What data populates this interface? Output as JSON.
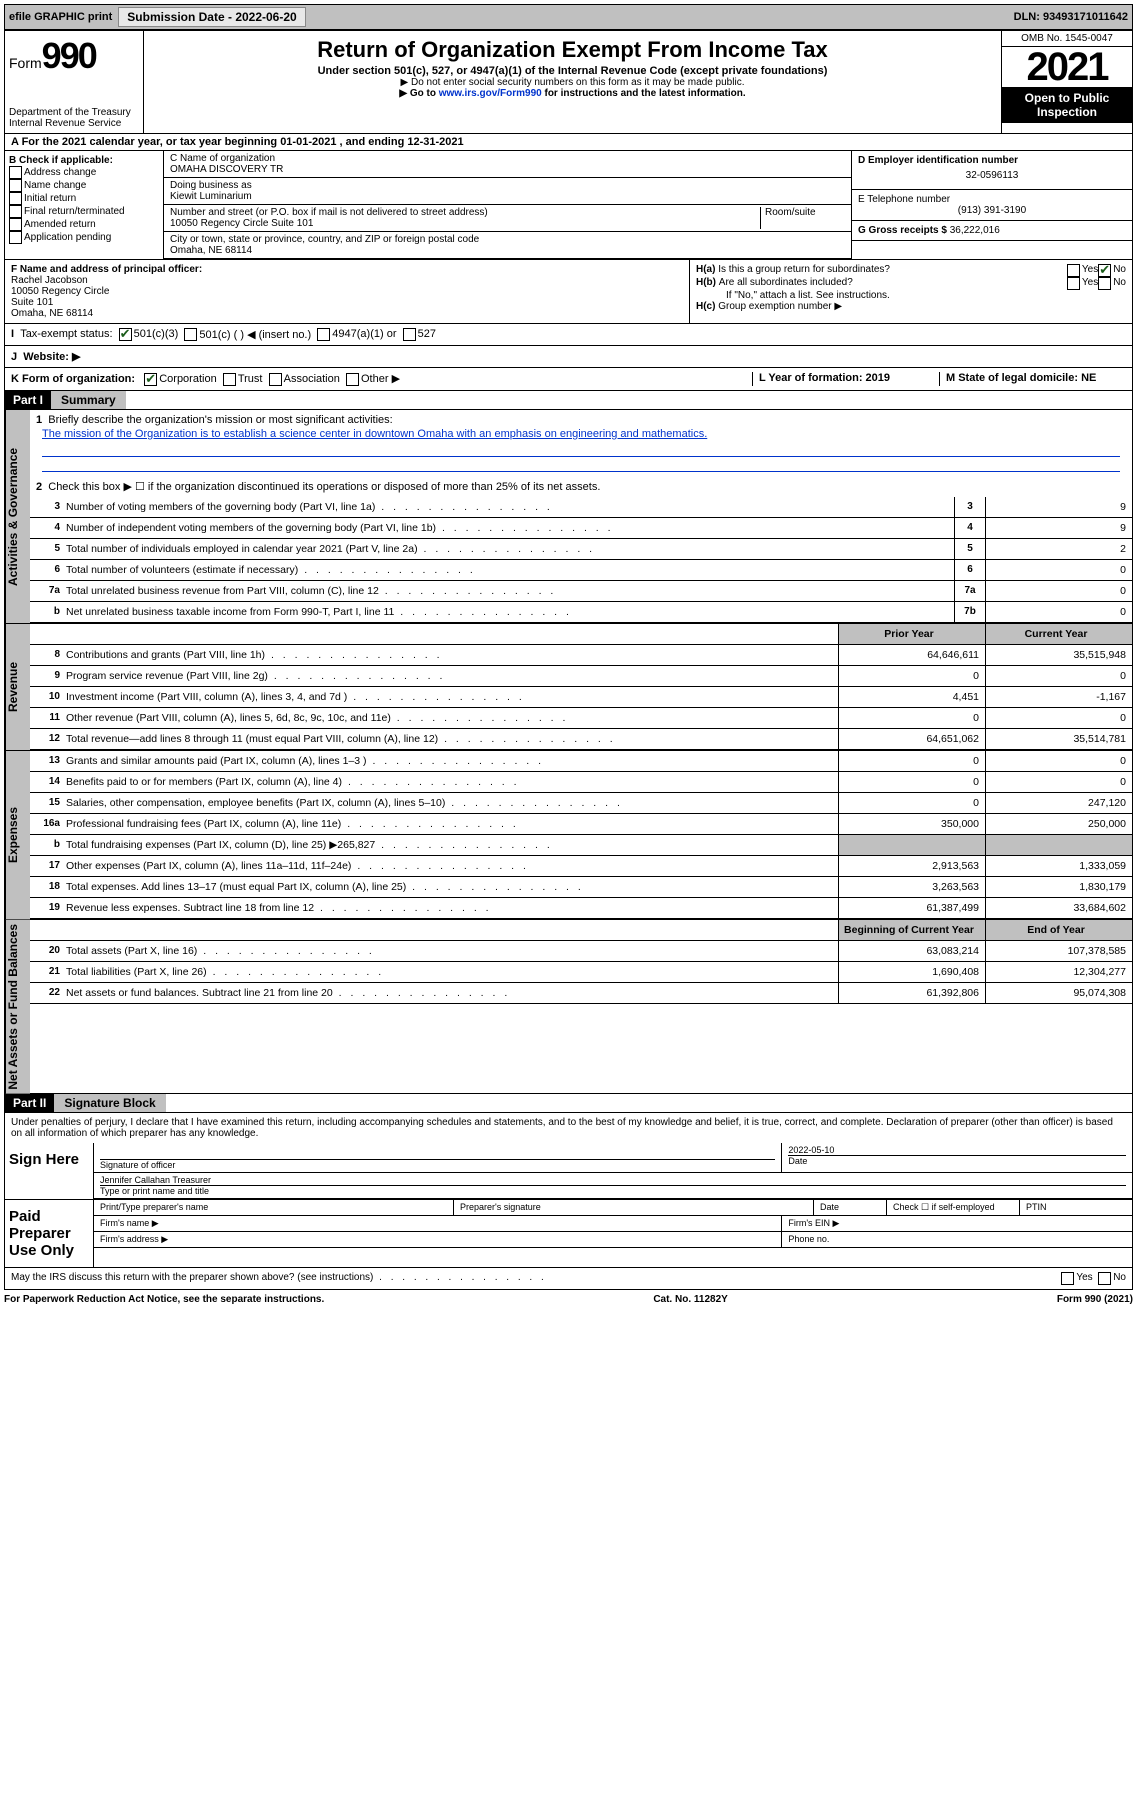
{
  "topbar": {
    "efile": "efile GRAPHIC print",
    "submission": "Submission Date - 2022-06-20",
    "dln": "DLN: 93493171011642"
  },
  "header": {
    "form": "Form",
    "form_no": "990",
    "title": "Return of Organization Exempt From Income Tax",
    "sub1": "Under section 501(c), 527, or 4947(a)(1) of the Internal Revenue Code (except private foundations)",
    "sub2": "▶ Do not enter social security numbers on this form as it may be made public.",
    "sub3_pre": "▶ Go to ",
    "sub3_link": "www.irs.gov/Form990",
    "sub3_post": " for instructions and the latest information.",
    "dept": "Department of the Treasury",
    "irs": "Internal Revenue Service",
    "omb": "OMB No. 1545-0047",
    "year": "2021",
    "open": "Open to Public Inspection"
  },
  "A": {
    "text": "A For the 2021 calendar year, or tax year beginning 01-01-2021    , and ending 12-31-2021"
  },
  "B": {
    "label": "B Check if applicable:",
    "opts": [
      "Address change",
      "Name change",
      "Initial return",
      "Final return/terminated",
      "Amended return",
      "Application pending"
    ]
  },
  "C": {
    "name_label": "C Name of organization",
    "name": "OMAHA DISCOVERY TR",
    "dba_label": "Doing business as",
    "dba": "Kiewit Luminarium",
    "addr_label": "Number and street (or P.O. box if mail is not delivered to street address)",
    "addr": "10050 Regency Circle Suite 101",
    "room_label": "Room/suite",
    "city_label": "City or town, state or province, country, and ZIP or foreign postal code",
    "city": "Omaha, NE  68114"
  },
  "D": {
    "label": "D Employer identification number",
    "val": "32-0596113"
  },
  "E": {
    "label": "E Telephone number",
    "val": "(913) 391-3190"
  },
  "G": {
    "label": "G Gross receipts $",
    "val": "36,222,016"
  },
  "F": {
    "label": "F Name and address of principal officer:",
    "name": "Rachel Jacobson",
    "addr1": "10050 Regency Circle",
    "addr2": "Suite 101",
    "addr3": "Omaha, NE  68114"
  },
  "H": {
    "a": "Is this a group return for subordinates?",
    "b": "Are all subordinates included?",
    "b_note": "If \"No,\" attach a list. See instructions.",
    "c": "Group exemption number ▶"
  },
  "I": {
    "label": "Tax-exempt status:",
    "opt1": "501(c)(3)",
    "opt2": "501(c) (   ) ◀ (insert no.)",
    "opt3": "4947(a)(1) or",
    "opt4": "527"
  },
  "J": {
    "label": "Website: ▶"
  },
  "K": {
    "label": "K Form of organization:",
    "opts": [
      "Corporation",
      "Trust",
      "Association",
      "Other ▶"
    ]
  },
  "L": {
    "label": "L Year of formation: 2019"
  },
  "M": {
    "label": "M State of legal domicile: NE"
  },
  "part1": {
    "label": "Part I",
    "title": "Summary",
    "l1_label": "Briefly describe the organization's mission or most significant activities:",
    "l1_text": "The mission of the Organization is to establish a science center in downtown Omaha with an emphasis on engineering and mathematics.",
    "l2": "Check this box ▶ ☐  if the organization discontinued its operations or disposed of more than 25% of its net assets.",
    "lines_gov": [
      {
        "n": "3",
        "t": "Number of voting members of the governing body (Part VI, line 1a)",
        "b": "3",
        "v": "9"
      },
      {
        "n": "4",
        "t": "Number of independent voting members of the governing body (Part VI, line 1b)",
        "b": "4",
        "v": "9"
      },
      {
        "n": "5",
        "t": "Total number of individuals employed in calendar year 2021 (Part V, line 2a)",
        "b": "5",
        "v": "2"
      },
      {
        "n": "6",
        "t": "Total number of volunteers (estimate if necessary)",
        "b": "6",
        "v": "0"
      },
      {
        "n": "7a",
        "t": "Total unrelated business revenue from Part VIII, column (C), line 12",
        "b": "7a",
        "v": "0"
      },
      {
        "n": "b",
        "t": "Net unrelated business taxable income from Form 990-T, Part I, line 11",
        "b": "7b",
        "v": "0"
      }
    ],
    "col_prior": "Prior Year",
    "col_current": "Current Year",
    "lines_rev": [
      {
        "n": "8",
        "t": "Contributions and grants (Part VIII, line 1h)",
        "p": "64,646,611",
        "c": "35,515,948"
      },
      {
        "n": "9",
        "t": "Program service revenue (Part VIII, line 2g)",
        "p": "0",
        "c": "0"
      },
      {
        "n": "10",
        "t": "Investment income (Part VIII, column (A), lines 3, 4, and 7d )",
        "p": "4,451",
        "c": "-1,167"
      },
      {
        "n": "11",
        "t": "Other revenue (Part VIII, column (A), lines 5, 6d, 8c, 9c, 10c, and 11e)",
        "p": "0",
        "c": "0"
      },
      {
        "n": "12",
        "t": "Total revenue—add lines 8 through 11 (must equal Part VIII, column (A), line 12)",
        "p": "64,651,062",
        "c": "35,514,781"
      }
    ],
    "lines_exp": [
      {
        "n": "13",
        "t": "Grants and similar amounts paid (Part IX, column (A), lines 1–3 )",
        "p": "0",
        "c": "0"
      },
      {
        "n": "14",
        "t": "Benefits paid to or for members (Part IX, column (A), line 4)",
        "p": "0",
        "c": "0"
      },
      {
        "n": "15",
        "t": "Salaries, other compensation, employee benefits (Part IX, column (A), lines 5–10)",
        "p": "0",
        "c": "247,120"
      },
      {
        "n": "16a",
        "t": "Professional fundraising fees (Part IX, column (A), line 11e)",
        "p": "350,000",
        "c": "250,000"
      },
      {
        "n": "b",
        "t": "Total fundraising expenses (Part IX, column (D), line 25) ▶265,827",
        "p": "",
        "c": "",
        "gray": true
      },
      {
        "n": "17",
        "t": "Other expenses (Part IX, column (A), lines 11a–11d, 11f–24e)",
        "p": "2,913,563",
        "c": "1,333,059"
      },
      {
        "n": "18",
        "t": "Total expenses. Add lines 13–17 (must equal Part IX, column (A), line 25)",
        "p": "3,263,563",
        "c": "1,830,179"
      },
      {
        "n": "19",
        "t": "Revenue less expenses. Subtract line 18 from line 12",
        "p": "61,387,499",
        "c": "33,684,602"
      }
    ],
    "col_beg": "Beginning of Current Year",
    "col_end": "End of Year",
    "lines_net": [
      {
        "n": "20",
        "t": "Total assets (Part X, line 16)",
        "p": "63,083,214",
        "c": "107,378,585"
      },
      {
        "n": "21",
        "t": "Total liabilities (Part X, line 26)",
        "p": "1,690,408",
        "c": "12,304,277"
      },
      {
        "n": "22",
        "t": "Net assets or fund balances. Subtract line 21 from line 20",
        "p": "61,392,806",
        "c": "95,074,308"
      }
    ]
  },
  "part2": {
    "label": "Part II",
    "title": "Signature Block",
    "declaration": "Under penalties of perjury, I declare that I have examined this return, including accompanying schedules and statements, and to the best of my knowledge and belief, it is true, correct, and complete. Declaration of preparer (other than officer) is based on all information of which preparer has any knowledge.",
    "sign_here": "Sign Here",
    "sig_officer": "Signature of officer",
    "date": "Date",
    "sig_date": "2022-05-10",
    "officer_name": "Jennifer Callahan  Treasurer",
    "officer_title_label": "Type or print name and title",
    "paid": "Paid Preparer Use Only",
    "prep_name": "Print/Type preparer's name",
    "prep_sig": "Preparer's signature",
    "prep_date": "Date",
    "prep_check": "Check ☐ if self-employed",
    "ptin": "PTIN",
    "firm_name": "Firm's name    ▶",
    "firm_ein": "Firm's EIN ▶",
    "firm_addr": "Firm's address ▶",
    "phone": "Phone no.",
    "discuss": "May the IRS discuss this return with the preparer shown above? (see instructions)"
  },
  "footer": {
    "left": "For Paperwork Reduction Act Notice, see the separate instructions.",
    "mid": "Cat. No. 11282Y",
    "right": "Form 990 (2021)"
  },
  "vtabs": {
    "gov": "Activities & Governance",
    "rev": "Revenue",
    "exp": "Expenses",
    "net": "Net Assets or Fund Balances"
  }
}
